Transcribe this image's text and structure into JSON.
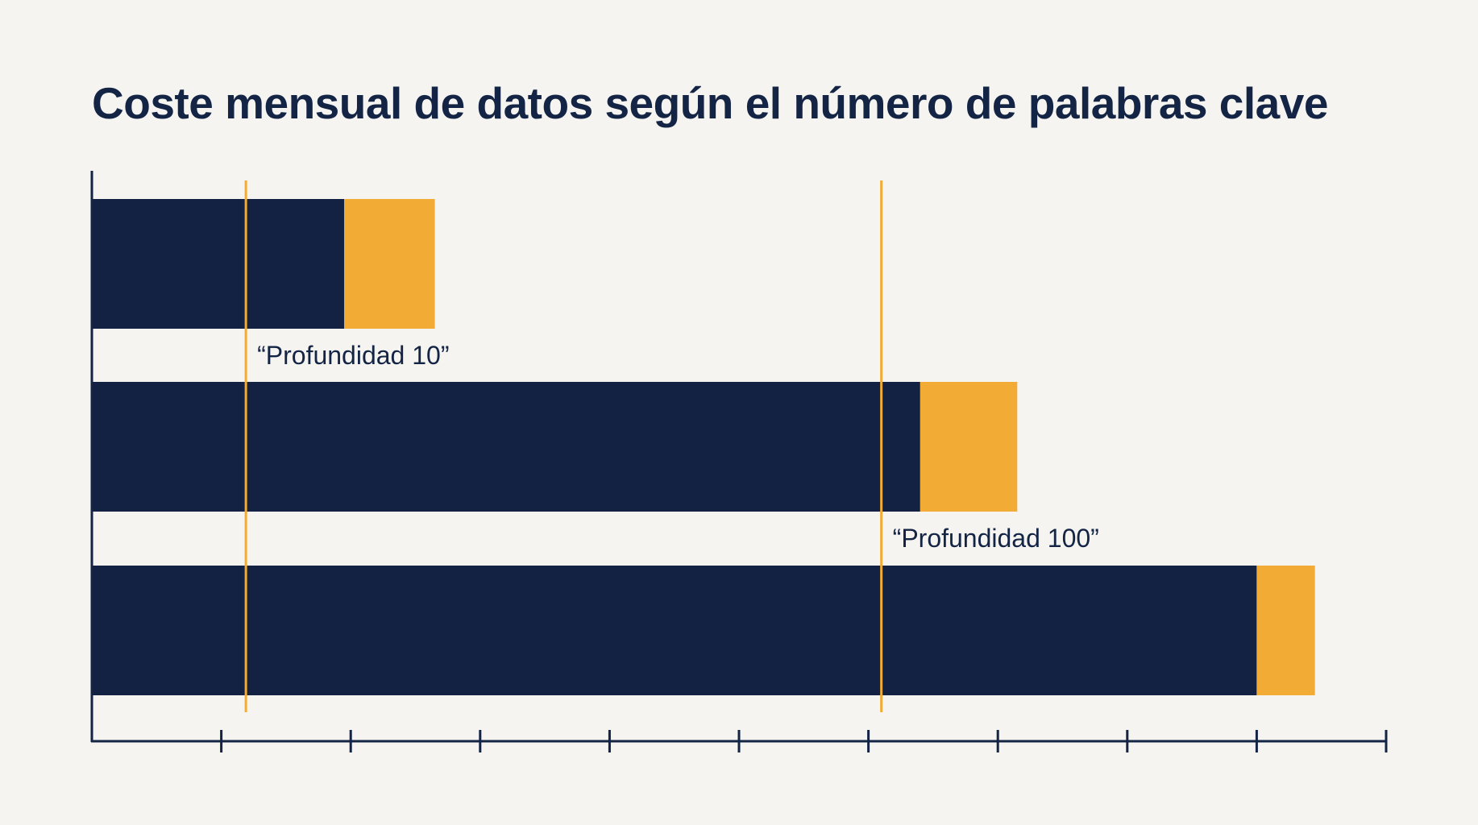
{
  "colors": {
    "background": "#f5f4f0",
    "primary": "#132242",
    "accent": "#f2ac35",
    "axis": "#142445"
  },
  "chart_data": {
    "type": "bar",
    "orientation": "horizontal",
    "stacked": true,
    "title": "Coste mensual de datos según el número de palabras clave",
    "xlabel": "",
    "ylabel": "",
    "xlim": [
      0,
      10
    ],
    "x_tick_count": 10,
    "tick_labels_shown": false,
    "grid": false,
    "legend": "none",
    "categories": [
      "",
      "",
      ""
    ],
    "series": [
      {
        "color": "#132242",
        "values": [
          1.95,
          6.4,
          9.0
        ]
      },
      {
        "color": "#f2ac35",
        "values": [
          0.7,
          0.75,
          0.45
        ]
      }
    ],
    "reference_lines": [
      {
        "x": 1.19,
        "label": "“Profundidad 10”",
        "label_position": "below-first-bar",
        "color": "#f2ac35"
      },
      {
        "x": 6.1,
        "label": "“Profundidad 100”",
        "label_position": "below-second-bar",
        "color": "#f2ac35"
      }
    ]
  }
}
